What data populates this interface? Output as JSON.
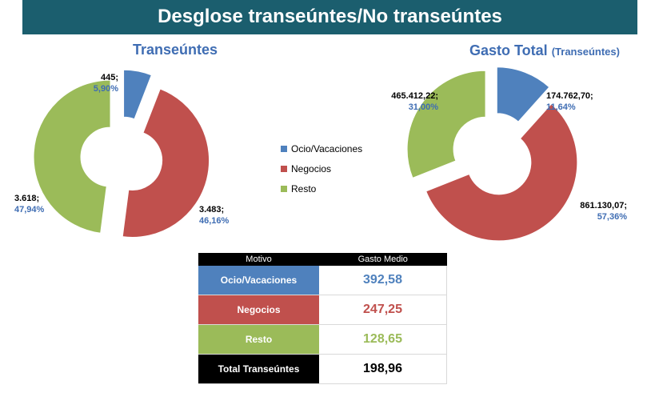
{
  "header": {
    "title": "Desglose transeúntes/No transeúntes"
  },
  "colors": {
    "ocio": "#4f81bd",
    "negocios": "#c0504d",
    "resto": "#9bbb59",
    "accent": "#3f6db3",
    "banner": "#1b5e6e"
  },
  "legend": [
    "Ocio/Vacaciones",
    "Negocios",
    "Resto"
  ],
  "chart_data": [
    {
      "type": "pie",
      "title": "Transeúntes",
      "categories": [
        "Ocio/Vacaciones",
        "Negocios",
        "Resto"
      ],
      "values": [
        445,
        3483,
        3618
      ],
      "percent": [
        5.9,
        46.16,
        47.94
      ],
      "value_labels": [
        "445;",
        "3.483;",
        "3.618;"
      ],
      "percent_labels": [
        "5,90%",
        "46,16%",
        "47,94%"
      ]
    },
    {
      "type": "pie",
      "title": "Gasto Total",
      "subtitle": "(Transeúntes)",
      "categories": [
        "Ocio/Vacaciones",
        "Negocios",
        "Resto"
      ],
      "values": [
        174762.7,
        861130.07,
        465412.22
      ],
      "percent": [
        11.64,
        57.36,
        31.0
      ],
      "value_labels": [
        "174.762,70;",
        "861.130,07;",
        "465.412,22;"
      ],
      "percent_labels": [
        "11,64%",
        "57,36%",
        "31,00%"
      ]
    },
    {
      "type": "table",
      "columns": [
        "Motivo",
        "Gasto Medio"
      ],
      "rows": [
        {
          "motivo": "Ocio/Vacaciones",
          "gasto": "392,58"
        },
        {
          "motivo": "Negocios",
          "gasto": "247,25"
        },
        {
          "motivo": "Resto",
          "gasto": "128,65"
        },
        {
          "motivo": "Total Transeúntes",
          "gasto": "198,96"
        }
      ]
    }
  ]
}
